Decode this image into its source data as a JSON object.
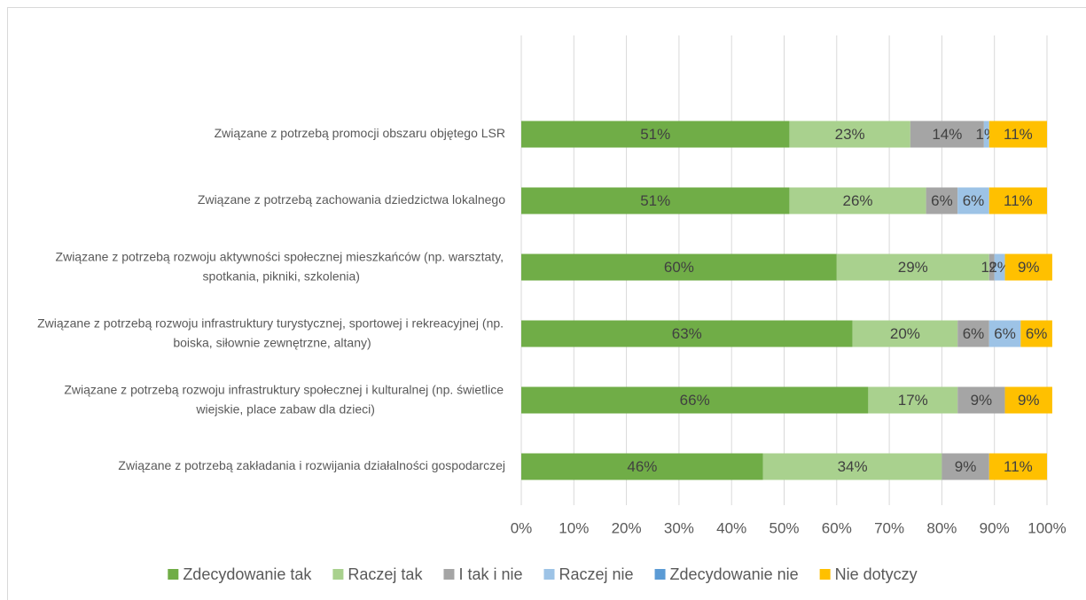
{
  "chart_data": {
    "type": "stacked_barh",
    "categories": [
      "Związane z potrzebą promocji obszaru objętego LSR",
      "Związane z potrzebą zachowania dziedzictwa lokalnego",
      "Związane z potrzebą rozwoju aktywności społecznej mieszkańców (np. warsztaty, spotkania, pikniki, szkolenia)",
      "Związane z potrzebą rozwoju infrastruktury turystycznej, sportowej i rekreacyjnej (np. boiska, siłownie zewnętrzne, altany)",
      "Związane z potrzebą rozwoju infrastruktury społecznej i kulturalnej (np. świetlice wiejskie, place zabaw dla dzieci)",
      "Związane z potrzebą zakładania i rozwijania działalności gospodarczej"
    ],
    "series": [
      {
        "name": "Zdecydowanie tak",
        "color": "#70ad47",
        "values": [
          51,
          51,
          60,
          63,
          66,
          46
        ],
        "value_labels": [
          "51%",
          "51%",
          "60%",
          "63%",
          "66%",
          "46%"
        ]
      },
      {
        "name": "Raczej tak",
        "color": "#a9d18e",
        "values": [
          23,
          26,
          29,
          20,
          17,
          34
        ],
        "value_labels": [
          "23%",
          "26%",
          "29%",
          "20%",
          "17%",
          "34%"
        ]
      },
      {
        "name": "I tak i nie",
        "color": "#a5a5a5",
        "values": [
          14,
          6,
          1,
          6,
          9,
          9
        ],
        "value_labels": [
          "14%",
          "6%",
          "1%",
          "6%",
          "9%",
          "9%"
        ]
      },
      {
        "name": "Raczej nie",
        "color": "#9dc3e6",
        "values": [
          1,
          6,
          2,
          6,
          0,
          0
        ],
        "value_labels": [
          "1%",
          "6%",
          "2%",
          "6%",
          null,
          null
        ]
      },
      {
        "name": "Zdecydowanie nie",
        "color": "#5b9bd5",
        "values": [
          0,
          0,
          0,
          0,
          0,
          0
        ],
        "value_labels": [
          null,
          null,
          null,
          null,
          null,
          null
        ]
      },
      {
        "name": "Nie dotyczy",
        "color": "#ffc000",
        "values": [
          11,
          11,
          9,
          6,
          9,
          11
        ],
        "value_labels": [
          "11%",
          "11%",
          "9%",
          "6%",
          "9%",
          "11%"
        ]
      }
    ],
    "xlim": [
      0,
      100
    ],
    "xticks": [
      {
        "value": 0,
        "label": "0%"
      },
      {
        "value": 10,
        "label": "10%"
      },
      {
        "value": 20,
        "label": "20%"
      },
      {
        "value": 30,
        "label": "30%"
      },
      {
        "value": 40,
        "label": "40%"
      },
      {
        "value": 50,
        "label": "50%"
      },
      {
        "value": 60,
        "label": "60%"
      },
      {
        "value": 70,
        "label": "70%"
      },
      {
        "value": 80,
        "label": "80%"
      },
      {
        "value": 90,
        "label": "90%"
      },
      {
        "value": 100,
        "label": "100%"
      }
    ],
    "grid": true,
    "legend": "bottom"
  }
}
